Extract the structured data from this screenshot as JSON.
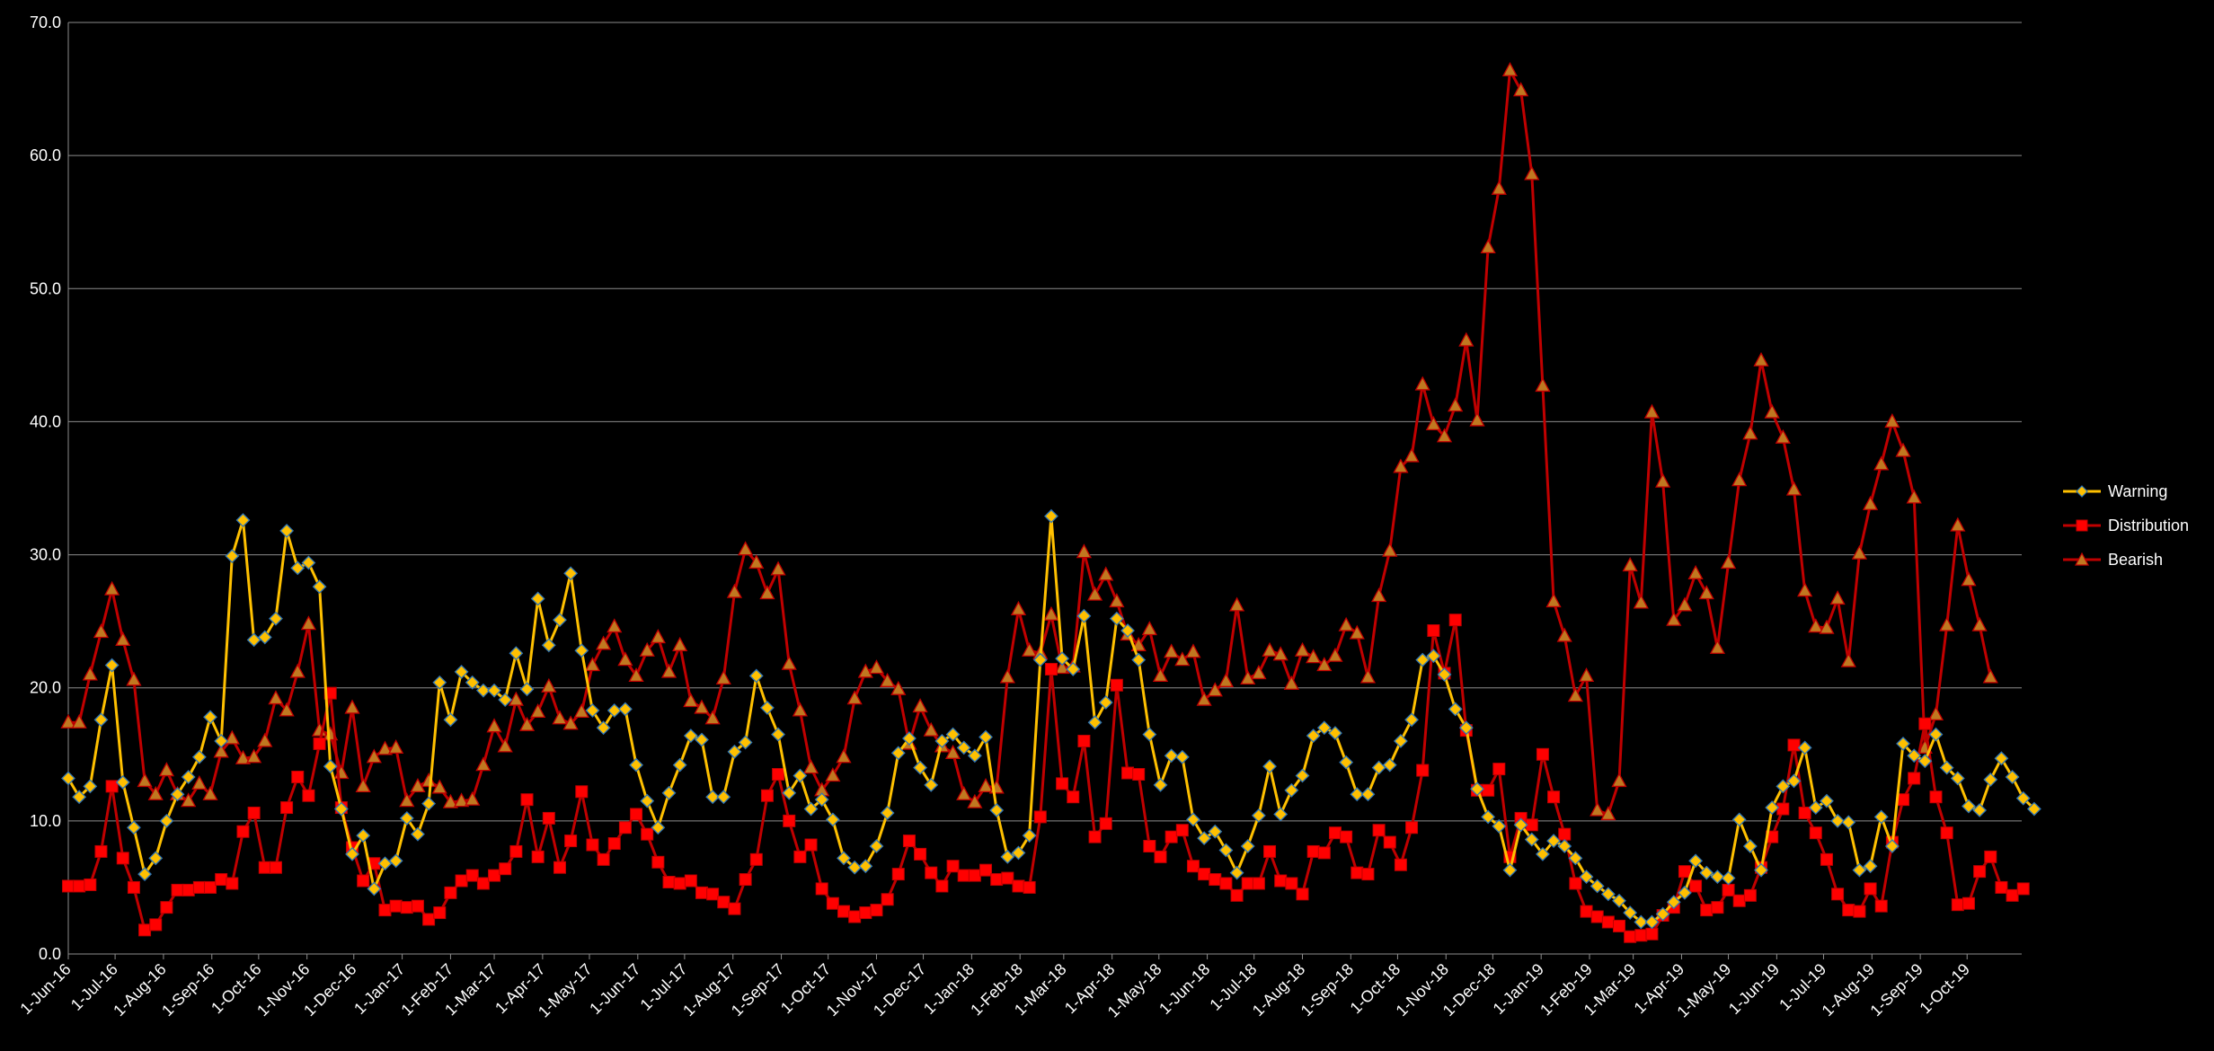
{
  "chart_data": {
    "type": "line",
    "title": "",
    "xlabel": "",
    "ylabel": "",
    "ylim": [
      0,
      70
    ],
    "y_ticks": [
      "0.0",
      "10.0",
      "20.0",
      "30.0",
      "40.0",
      "50.0",
      "60.0",
      "70.0"
    ],
    "x_tick_labels": [
      "1-Jun-16",
      "1-Jul-16",
      "1-Aug-16",
      "1-Sep-16",
      "1-Oct-16",
      "1-Nov-16",
      "1-Dec-16",
      "1-Jan-17",
      "1-Feb-17",
      "1-Mar-17",
      "1-Apr-17",
      "1-May-17",
      "1-Jun-17",
      "1-Jul-17",
      "1-Aug-17",
      "1-Sep-17",
      "1-Oct-17",
      "1-Nov-17",
      "1-Dec-17",
      "1-Jan-18",
      "1-Feb-18",
      "1-Mar-18",
      "1-Apr-18",
      "1-May-18",
      "1-Jun-18",
      "1-Jul-18",
      "1-Aug-18",
      "1-Sep-18",
      "1-Oct-18",
      "1-Nov-18",
      "1-Dec-18",
      "1-Jan-19",
      "1-Feb-19",
      "1-Mar-19",
      "1-Apr-19",
      "1-May-19",
      "1-Jun-19",
      "1-Jul-19",
      "1-Aug-19",
      "1-Sep-19",
      "1-Oct-19"
    ],
    "x_start": "2016-06-01",
    "x_end": "2019-11-05",
    "x_step_days": 7,
    "grid": true,
    "legend_position": "right",
    "series": [
      {
        "name": "Warning",
        "color": "#FFC000",
        "marker": "diamond",
        "values": [
          13.2,
          11.8,
          12.6,
          17.6,
          21.7,
          12.9,
          9.5,
          6.0,
          7.2,
          10.0,
          12.0,
          13.3,
          14.8,
          17.8,
          16.0,
          29.9,
          32.6,
          23.6,
          23.8,
          25.2,
          31.8,
          29.0,
          29.4,
          27.6,
          14.1,
          10.9,
          7.5,
          8.9,
          4.9,
          6.8,
          7.0,
          10.2,
          9.0,
          11.3,
          20.4,
          17.6,
          21.2,
          20.4,
          19.8,
          19.8,
          19.1,
          22.6,
          19.9,
          26.7,
          23.2,
          25.1,
          28.6,
          22.8,
          18.3,
          17.0,
          18.3,
          18.4,
          14.2,
          11.5,
          9.5,
          12.1,
          14.2,
          16.4,
          16.1,
          11.8,
          11.8,
          15.2,
          15.9,
          20.9,
          18.5,
          16.5,
          12.1,
          13.4,
          10.9,
          11.6,
          10.1,
          7.2,
          6.5,
          6.6,
          8.1,
          10.6,
          15.1,
          16.2,
          14.0,
          12.7,
          16.0,
          16.5,
          15.5,
          14.9,
          16.3,
          10.8,
          7.3,
          7.6,
          8.9,
          22.1,
          32.9,
          22.2,
          21.4,
          25.4,
          17.4,
          18.9,
          25.2,
          24.3,
          22.1,
          16.5,
          12.7,
          14.9,
          14.8,
          10.1,
          8.7,
          9.2,
          7.8,
          6.1,
          8.1,
          10.4,
          14.1,
          10.5,
          12.3,
          13.4,
          16.4,
          17.0,
          16.6,
          14.4,
          12.0,
          12.0,
          14.0,
          14.2,
          16.0,
          17.6,
          22.1,
          22.4,
          21.0,
          18.4,
          17.0,
          12.4,
          10.3,
          9.6,
          6.3,
          9.7,
          8.6,
          7.5,
          8.5,
          8.1,
          7.2,
          5.8,
          5.1,
          4.5,
          4.0,
          3.1,
          2.4,
          2.4,
          3.0,
          3.9,
          4.6,
          7.0,
          6.1,
          5.8,
          5.7,
          10.1,
          8.1,
          6.3,
          11.0,
          12.6,
          13.0,
          15.5,
          11.0,
          11.5,
          10.0,
          9.9,
          6.3,
          6.6,
          10.3,
          8.1,
          15.8,
          14.9,
          14.5,
          16.5,
          14.0,
          13.2,
          11.1,
          10.8,
          13.1,
          14.7,
          13.3,
          11.7,
          10.9
        ]
      },
      {
        "name": "Distribution",
        "color": "#FF0000",
        "line_color": "#C00000",
        "marker": "square",
        "values": [
          5.1,
          5.1,
          5.2,
          7.7,
          12.6,
          7.2,
          5.0,
          1.8,
          2.2,
          3.5,
          4.8,
          4.8,
          5.0,
          5.0,
          5.6,
          5.3,
          9.2,
          10.6,
          6.5,
          6.5,
          11.0,
          13.3,
          11.9,
          15.8,
          19.6,
          11.0,
          8.0,
          5.5,
          6.8,
          3.3,
          3.6,
          3.5,
          3.6,
          2.6,
          3.1,
          4.6,
          5.5,
          5.9,
          5.3,
          5.9,
          6.4,
          7.7,
          11.6,
          7.3,
          10.2,
          6.5,
          8.5,
          12.2,
          8.2,
          7.1,
          8.3,
          9.5,
          10.5,
          9.0,
          6.9,
          5.4,
          5.3,
          5.5,
          4.6,
          4.5,
          3.9,
          3.4,
          5.6,
          7.1,
          11.9,
          13.5,
          10.0,
          7.3,
          8.2,
          4.9,
          3.8,
          3.2,
          2.8,
          3.1,
          3.3,
          4.1,
          6.0,
          8.5,
          7.5,
          6.1,
          5.1,
          6.6,
          5.9,
          5.9,
          6.3,
          5.6,
          5.7,
          5.1,
          5.0,
          10.3,
          21.4,
          12.8,
          11.8,
          16.0,
          8.8,
          9.8,
          20.2,
          13.6,
          13.5,
          8.1,
          7.3,
          8.8,
          9.3,
          6.6,
          6.0,
          5.6,
          5.3,
          4.4,
          5.3,
          5.3,
          7.7,
          5.5,
          5.3,
          4.5,
          7.7,
          7.6,
          9.1,
          8.8,
          6.1,
          6.0,
          9.3,
          8.4,
          6.7,
          9.5,
          13.8,
          24.3,
          21.1,
          25.1,
          16.8,
          12.3,
          12.3,
          13.9,
          7.3,
          10.2,
          9.7,
          15.0,
          11.8,
          9.0,
          5.3,
          3.2,
          2.8,
          2.4,
          2.1,
          1.3,
          1.4,
          1.5,
          2.9,
          3.5,
          6.2,
          5.1,
          3.3,
          3.5,
          4.8,
          4.0,
          4.4,
          6.5,
          8.8,
          10.9,
          15.7,
          10.6,
          9.1,
          7.1,
          4.5,
          3.3,
          3.2,
          4.9,
          3.6,
          8.4,
          11.6,
          13.2,
          17.3,
          11.8,
          9.1,
          3.7,
          3.8,
          6.2,
          7.3,
          5.0,
          4.4,
          4.9
        ]
      },
      {
        "name": "Bearish",
        "color": "#C00000",
        "marker_fill": "#C07820",
        "marker": "triangle",
        "values": [
          17.4,
          17.4,
          21.0,
          24.2,
          27.4,
          23.6,
          20.6,
          13.0,
          12.0,
          13.8,
          12.0,
          11.5,
          12.8,
          12.0,
          15.2,
          16.2,
          14.7,
          14.8,
          16.0,
          19.2,
          18.3,
          21.2,
          24.8,
          16.8,
          16.5,
          13.6,
          18.5,
          12.6,
          14.8,
          15.4,
          15.5,
          11.5,
          12.6,
          13.0,
          12.5,
          11.4,
          11.5,
          11.6,
          14.2,
          17.1,
          15.6,
          19.1,
          17.2,
          18.2,
          20.1,
          17.7,
          17.3,
          18.2,
          21.7,
          23.3,
          24.6,
          22.1,
          20.9,
          22.8,
          23.8,
          21.2,
          23.2,
          19.0,
          18.5,
          17.7,
          20.7,
          27.2,
          30.4,
          29.4,
          27.1,
          28.9,
          21.8,
          18.3,
          14.0,
          12.3,
          13.4,
          14.8,
          19.2,
          21.2,
          21.5,
          20.5,
          19.9,
          15.8,
          18.6,
          16.8,
          15.6,
          15.1,
          12.0,
          11.4,
          12.6,
          12.5,
          20.8,
          25.9,
          22.8,
          22.6,
          25.5,
          21.5,
          21.6,
          30.2,
          27.0,
          28.5,
          26.5,
          24.0,
          23.2,
          24.4,
          20.9,
          22.7,
          22.1,
          22.7,
          19.1,
          19.8,
          20.5,
          26.2,
          20.7,
          21.1,
          22.8,
          22.5,
          20.3,
          22.8,
          22.3,
          21.7,
          22.4,
          24.7,
          24.1,
          20.8,
          26.9,
          30.3,
          36.6,
          37.4,
          42.8,
          39.8,
          38.9,
          41.2,
          46.1,
          40.1,
          53.1,
          57.5,
          66.4,
          64.9,
          58.6,
          42.7,
          26.5,
          23.9,
          19.4,
          20.9,
          10.8,
          10.5,
          13.0,
          29.2,
          26.4,
          40.7,
          35.5,
          25.1,
          26.2,
          28.6,
          27.1,
          23.0,
          29.4,
          35.6,
          39.1,
          44.6,
          40.7,
          38.8,
          34.9,
          27.3,
          24.6,
          24.5,
          26.7,
          22.0,
          30.1,
          33.8,
          36.8,
          40.0,
          37.8,
          34.3,
          15.5,
          18.0,
          24.7,
          32.2,
          28.1,
          24.7,
          20.8
        ]
      }
    ]
  }
}
